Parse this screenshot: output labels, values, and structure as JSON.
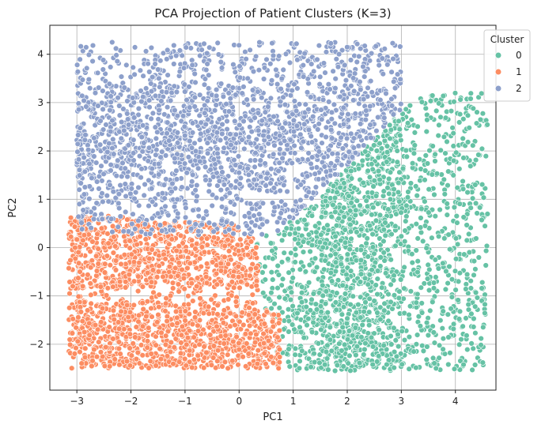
{
  "chart_data": {
    "type": "scatter",
    "title": "PCA Projection of Patient Clusters (K=3)",
    "xlabel": "PC1",
    "ylabel": "PC2",
    "xlim": [
      -3.5,
      4.75
    ],
    "ylim": [
      -2.95,
      4.6
    ],
    "xticks": [
      -3,
      -2,
      -1,
      0,
      1,
      2,
      3,
      4
    ],
    "yticks": [
      -2,
      -1,
      0,
      1,
      2,
      3,
      4
    ],
    "grid": true,
    "legend": {
      "title": "Cluster",
      "placement": "top-right"
    },
    "series": [
      {
        "name": "0",
        "color": "#66c2a5",
        "region": {
          "x": [
            0.3,
            4.6
          ],
          "y": [
            -2.55,
            3.2
          ]
        },
        "n": 1900
      },
      {
        "name": "1",
        "color": "#fc8d62",
        "region": {
          "x": [
            -3.15,
            0.75
          ],
          "y": [
            -2.5,
            0.7
          ]
        },
        "n": 1900
      },
      {
        "name": "2",
        "color": "#8da0cb",
        "region": {
          "x": [
            -3.0,
            3.0
          ],
          "y": [
            0.2,
            4.25
          ]
        },
        "n": 2100
      }
    ]
  }
}
